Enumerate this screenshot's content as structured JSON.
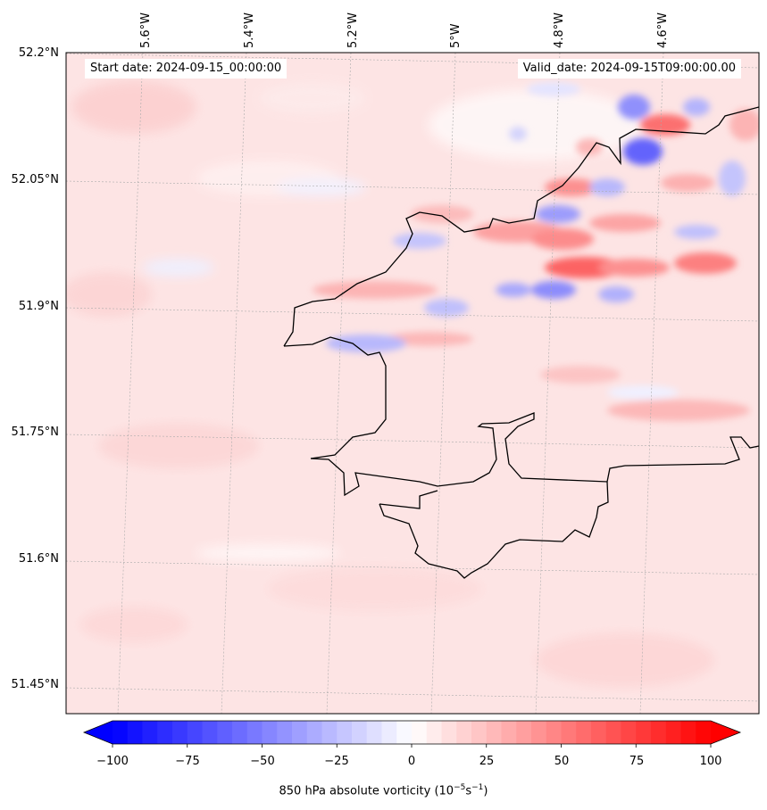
{
  "map": {
    "start_date": "Start date: 2024-09-15_00:00:00",
    "valid_date": "Valid_date: 2024-09-15T09:00:00.00",
    "lon_labels": [
      "5.6°W",
      "5.4°W",
      "5.2°W",
      "5°W",
      "4.8°W",
      "4.6°W"
    ],
    "lat_labels": [
      "52.2°N",
      "52.05°N",
      "51.9°N",
      "51.75°N",
      "51.6°N",
      "51.45°N"
    ]
  },
  "colorbar": {
    "ticks": [
      "−100",
      "−75",
      "−50",
      "−25",
      "0",
      "25",
      "50",
      "75",
      "100"
    ],
    "label_text": "850 hPa absolute vorticity (10",
    "label_exp1": "−5",
    "label_mid": "s",
    "label_exp2": "−1",
    "label_end": ")",
    "min": -100,
    "max": 100,
    "low_color": "#0000ff",
    "mid_color": "#ffffff",
    "high_color": "#ff0000"
  }
}
